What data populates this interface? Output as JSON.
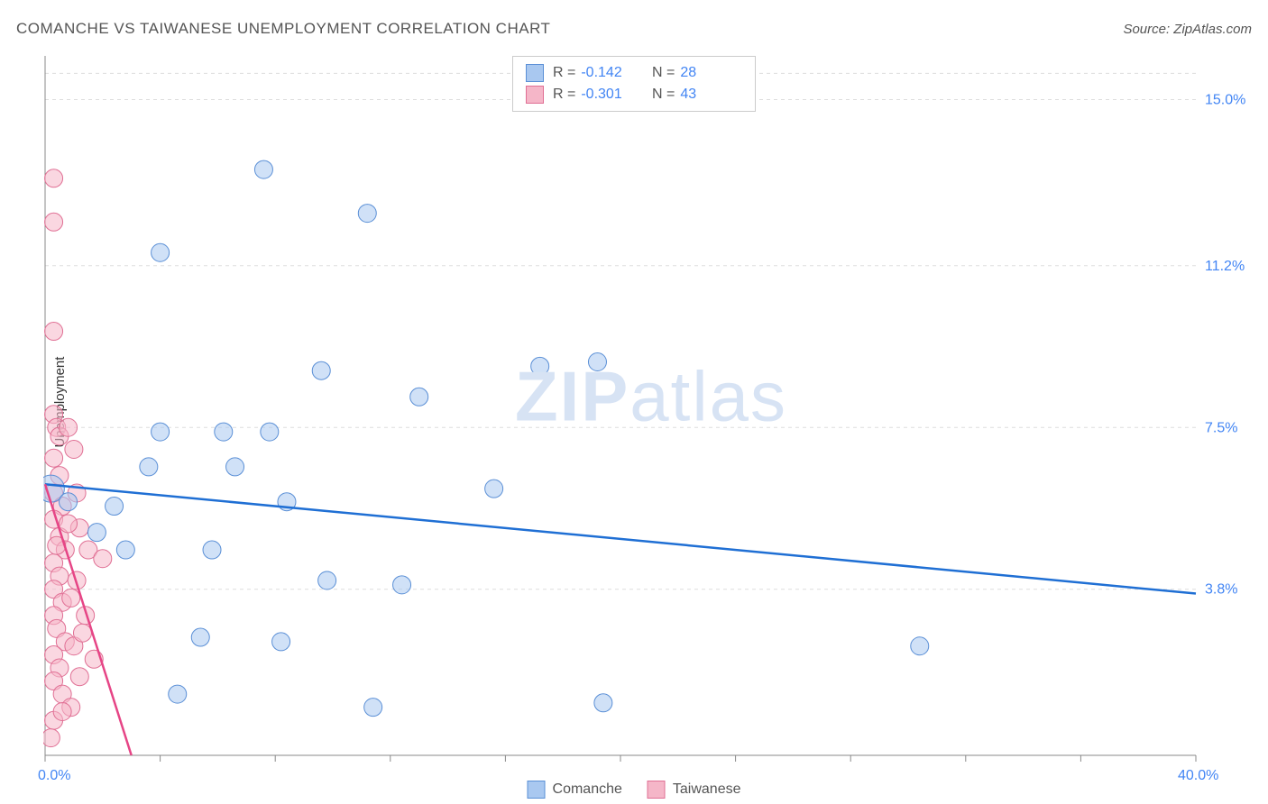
{
  "title": "COMANCHE VS TAIWANESE UNEMPLOYMENT CORRELATION CHART",
  "source": "Source: ZipAtlas.com",
  "watermark_bold": "ZIP",
  "watermark_rest": "atlas",
  "y_axis_label": "Unemployment",
  "chart": {
    "type": "scatter",
    "background_color": "#ffffff",
    "grid_color": "#dddddd",
    "axis_color": "#888888",
    "tick_color": "#888888",
    "xlim": [
      0,
      40
    ],
    "ylim": [
      0,
      16
    ],
    "x_ticks": [
      0,
      4,
      8,
      12,
      16,
      20,
      24,
      28,
      32,
      36,
      40
    ],
    "x_tick_labels": {
      "min": "0.0%",
      "max": "40.0%"
    },
    "y_ticks": [
      3.8,
      7.5,
      11.2,
      15.0
    ],
    "y_tick_labels": [
      "3.8%",
      "7.5%",
      "11.2%",
      "15.0%"
    ],
    "marker_radius": 10,
    "marker_opacity": 0.55,
    "line_width": 2.5,
    "series": [
      {
        "name": "Comanche",
        "color_fill": "#a9c8f0",
        "color_stroke": "#5a8fd6",
        "line_color": "#1f6fd4",
        "R": "-0.142",
        "N": "28",
        "trend": {
          "x1": 0,
          "y1": 6.2,
          "x2": 40,
          "y2": 3.7
        },
        "points": [
          {
            "x": 0.2,
            "y": 6.1,
            "r": 15
          },
          {
            "x": 2.8,
            "y": 4.7
          },
          {
            "x": 3.6,
            "y": 6.6
          },
          {
            "x": 2.4,
            "y": 5.7
          },
          {
            "x": 4.0,
            "y": 11.5
          },
          {
            "x": 4.6,
            "y": 1.4
          },
          {
            "x": 5.4,
            "y": 2.7
          },
          {
            "x": 6.2,
            "y": 7.4
          },
          {
            "x": 5.8,
            "y": 4.7
          },
          {
            "x": 6.6,
            "y": 6.6
          },
          {
            "x": 7.6,
            "y": 13.4
          },
          {
            "x": 7.8,
            "y": 7.4
          },
          {
            "x": 8.2,
            "y": 2.6
          },
          {
            "x": 8.4,
            "y": 5.8
          },
          {
            "x": 9.6,
            "y": 8.8
          },
          {
            "x": 9.8,
            "y": 4.0
          },
          {
            "x": 11.2,
            "y": 12.4
          },
          {
            "x": 11.4,
            "y": 1.1
          },
          {
            "x": 12.4,
            "y": 3.9
          },
          {
            "x": 13.0,
            "y": 8.2
          },
          {
            "x": 15.6,
            "y": 6.1
          },
          {
            "x": 17.2,
            "y": 8.9
          },
          {
            "x": 19.4,
            "y": 1.2
          },
          {
            "x": 19.2,
            "y": 9.0
          },
          {
            "x": 30.4,
            "y": 2.5
          },
          {
            "x": 4.0,
            "y": 7.4
          },
          {
            "x": 1.8,
            "y": 5.1
          },
          {
            "x": 0.8,
            "y": 5.8
          }
        ]
      },
      {
        "name": "Taiwanese",
        "color_fill": "#f5b6c8",
        "color_stroke": "#e06f94",
        "line_color": "#e64586",
        "R": "-0.301",
        "N": "43",
        "trend": {
          "x1": 0,
          "y1": 6.2,
          "x2": 3.0,
          "y2": 0.0
        },
        "points": [
          {
            "x": 0.3,
            "y": 13.2
          },
          {
            "x": 0.3,
            "y": 12.2
          },
          {
            "x": 0.3,
            "y": 9.7
          },
          {
            "x": 0.3,
            "y": 7.8
          },
          {
            "x": 0.4,
            "y": 7.5
          },
          {
            "x": 0.5,
            "y": 7.3
          },
          {
            "x": 0.3,
            "y": 6.8
          },
          {
            "x": 0.5,
            "y": 6.4
          },
          {
            "x": 0.3,
            "y": 6.0
          },
          {
            "x": 0.6,
            "y": 5.7
          },
          {
            "x": 0.3,
            "y": 5.4
          },
          {
            "x": 0.5,
            "y": 5.0
          },
          {
            "x": 0.7,
            "y": 4.7
          },
          {
            "x": 0.3,
            "y": 4.4
          },
          {
            "x": 0.5,
            "y": 4.1
          },
          {
            "x": 0.3,
            "y": 3.8
          },
          {
            "x": 0.6,
            "y": 3.5
          },
          {
            "x": 0.3,
            "y": 3.2
          },
          {
            "x": 0.4,
            "y": 2.9
          },
          {
            "x": 0.7,
            "y": 2.6
          },
          {
            "x": 0.3,
            "y": 2.3
          },
          {
            "x": 0.5,
            "y": 2.0
          },
          {
            "x": 0.3,
            "y": 1.7
          },
          {
            "x": 0.6,
            "y": 1.4
          },
          {
            "x": 0.9,
            "y": 1.1
          },
          {
            "x": 0.3,
            "y": 0.8
          },
          {
            "x": 1.2,
            "y": 1.8
          },
          {
            "x": 1.0,
            "y": 2.5
          },
          {
            "x": 1.4,
            "y": 3.2
          },
          {
            "x": 1.1,
            "y": 4.0
          },
          {
            "x": 1.5,
            "y": 4.7
          },
          {
            "x": 0.8,
            "y": 7.5
          },
          {
            "x": 1.0,
            "y": 7.0
          },
          {
            "x": 1.2,
            "y": 5.2
          },
          {
            "x": 0.2,
            "y": 0.4
          },
          {
            "x": 1.7,
            "y": 2.2
          },
          {
            "x": 0.9,
            "y": 3.6
          },
          {
            "x": 1.1,
            "y": 6.0
          },
          {
            "x": 0.4,
            "y": 4.8
          },
          {
            "x": 0.8,
            "y": 5.3
          },
          {
            "x": 1.3,
            "y": 2.8
          },
          {
            "x": 0.6,
            "y": 1.0
          },
          {
            "x": 2.0,
            "y": 4.5
          }
        ]
      }
    ]
  },
  "legend_top_label_R": "R =",
  "legend_top_label_N": "N ="
}
